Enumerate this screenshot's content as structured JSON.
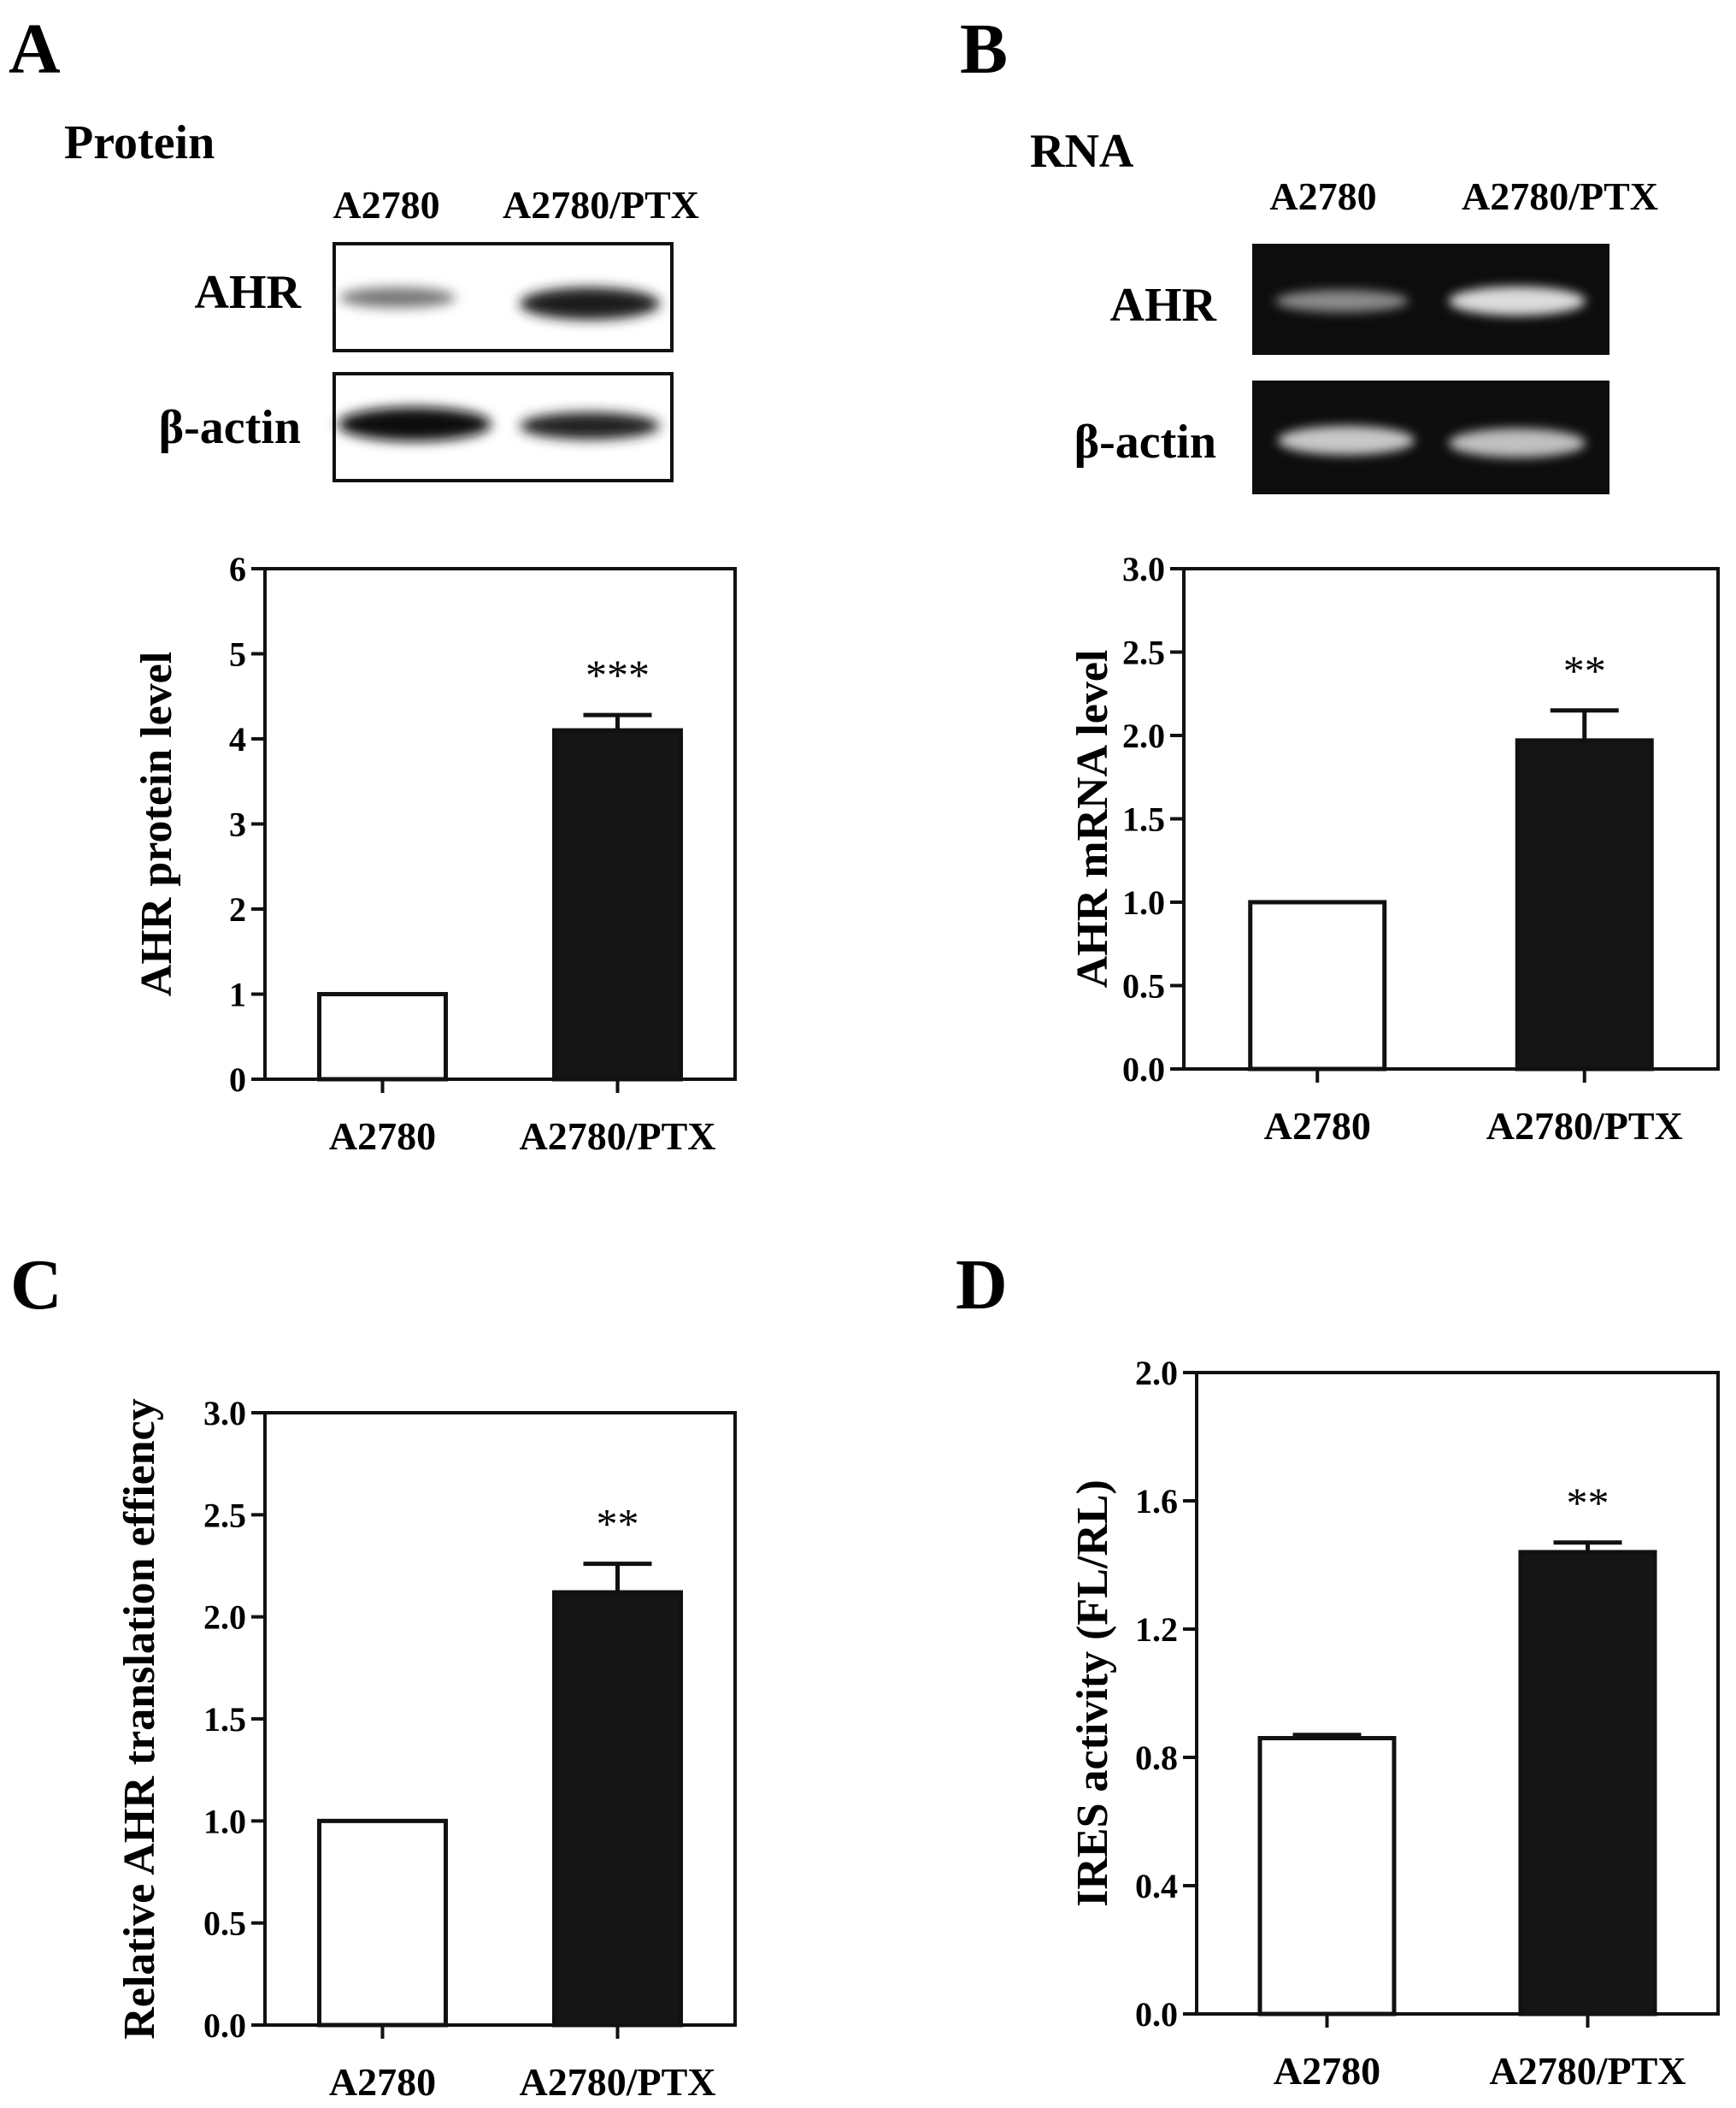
{
  "panels": {
    "A": {
      "letter": "A",
      "section_title": "Protein",
      "lanes": [
        "A2780",
        "A2780/PTX"
      ],
      "blot_rows": [
        "AHR",
        "β-actin"
      ]
    },
    "B": {
      "letter": "B",
      "section_title": "RNA",
      "lanes": [
        "A2780",
        "A2780/PTX"
      ],
      "blot_rows": [
        "AHR",
        "β-actin"
      ]
    },
    "C": {
      "letter": "C"
    },
    "D": {
      "letter": "D"
    }
  },
  "colors": {
    "bar_control": "#ffffff",
    "bar_treated": "#151515",
    "axis": "#111111",
    "gel_background": "#0d0d0d"
  },
  "chart_data": [
    {
      "id": "A",
      "type": "bar",
      "categories": [
        "A2780",
        "A2780/PTX"
      ],
      "values": [
        1.0,
        4.1
      ],
      "errors": [
        0,
        0.18
      ],
      "significance": [
        "",
        "***"
      ],
      "ylabel": "AHR protein level",
      "ylim": [
        0,
        6
      ],
      "yticks": [
        "0",
        "1",
        "2",
        "3",
        "4",
        "5",
        "6"
      ],
      "bar_colors": [
        "#ffffff",
        "#151515"
      ]
    },
    {
      "id": "B",
      "type": "bar",
      "categories": [
        "A2780",
        "A2780/PTX"
      ],
      "values": [
        1.0,
        1.97
      ],
      "errors": [
        0,
        0.18
      ],
      "significance": [
        "",
        "**"
      ],
      "ylabel": "AHR mRNA level",
      "ylim": [
        0,
        3.0
      ],
      "yticks": [
        "0.0",
        "0.5",
        "1.0",
        "1.5",
        "2.0",
        "2.5",
        "3.0"
      ],
      "bar_colors": [
        "#ffffff",
        "#151515"
      ]
    },
    {
      "id": "C",
      "type": "bar",
      "categories": [
        "A2780",
        "A2780/PTX"
      ],
      "values": [
        1.0,
        2.12
      ],
      "errors": [
        0,
        0.14
      ],
      "significance": [
        "",
        "**"
      ],
      "ylabel": "Relative AHR translation effiency",
      "ylim": [
        0,
        3.0
      ],
      "yticks": [
        "0.0",
        "0.5",
        "1.0",
        "1.5",
        "2.0",
        "2.5",
        "3.0"
      ],
      "bar_colors": [
        "#ffffff",
        "#151515"
      ]
    },
    {
      "id": "D",
      "type": "bar",
      "categories": [
        "A2780",
        "A2780/PTX"
      ],
      "values": [
        0.86,
        1.44
      ],
      "errors": [
        0.01,
        0.03
      ],
      "significance": [
        "",
        "**"
      ],
      "ylabel": "IRES activity (FL/RL)",
      "ylim": [
        0,
        2.0
      ],
      "yticks": [
        "0.0",
        "0.4",
        "0.8",
        "1.2",
        "1.6",
        "2.0"
      ],
      "bar_colors": [
        "#ffffff",
        "#151515"
      ]
    }
  ]
}
